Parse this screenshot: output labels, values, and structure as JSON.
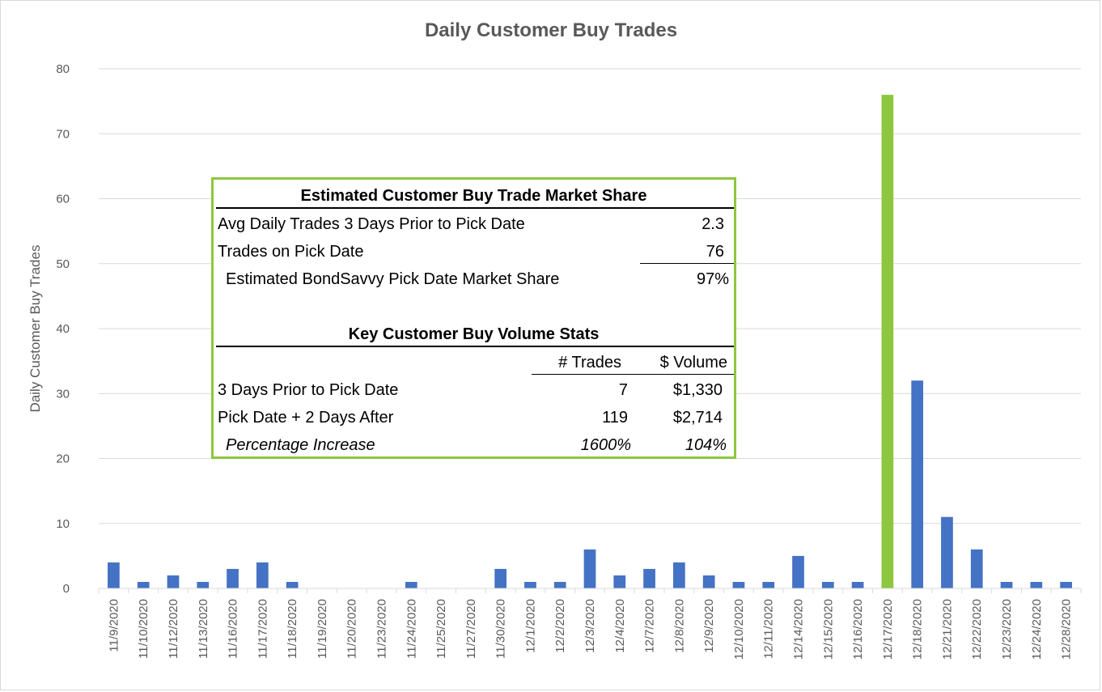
{
  "chart_data": {
    "type": "bar",
    "title": "Daily Customer Buy Trades",
    "ylabel": "Daily Customer Buy Trades",
    "xlabel": "",
    "ylim": [
      0,
      80
    ],
    "yticks": [
      "0",
      "10",
      "20",
      "30",
      "40",
      "50",
      "60",
      "70",
      "80"
    ],
    "grid": true,
    "categories": [
      "11/9/2020",
      "11/10/2020",
      "11/12/2020",
      "11/13/2020",
      "11/16/2020",
      "11/17/2020",
      "11/18/2020",
      "11/19/2020",
      "11/20/2020",
      "11/23/2020",
      "11/24/2020",
      "11/25/2020",
      "11/27/2020",
      "11/30/2020",
      "12/1/2020",
      "12/2/2020",
      "12/3/2020",
      "12/4/2020",
      "12/7/2020",
      "12/8/2020",
      "12/9/2020",
      "12/10/2020",
      "12/11/2020",
      "12/14/2020",
      "12/15/2020",
      "12/16/2020",
      "12/17/2020",
      "12/18/2020",
      "12/21/2020",
      "12/22/2020",
      "12/23/2020",
      "12/24/2020",
      "12/28/2020"
    ],
    "values": [
      4,
      1,
      2,
      1,
      3,
      4,
      1,
      0,
      0,
      0,
      1,
      0,
      0,
      3,
      1,
      1,
      6,
      2,
      3,
      4,
      2,
      1,
      1,
      5,
      1,
      1,
      76,
      32,
      11,
      6,
      1,
      1,
      1
    ],
    "highlight_index": 26,
    "colors": {
      "bar": "#4472c4",
      "highlight": "#8dc63f",
      "grid": "#d9d9d9",
      "axis": "#595959"
    }
  },
  "stats_box": {
    "border_color": "#8dc63f",
    "market_share": {
      "title": "Estimated Customer Buy Trade Market Share",
      "avg_label": "Avg Daily Trades 3 Days Prior to Pick Date",
      "avg_value": "2.3",
      "pick_label": "Trades on Pick Date",
      "pick_value": "76",
      "share_label": "Estimated BondSavvy Pick Date Market Share",
      "share_value": "97%"
    },
    "volume_stats": {
      "title": "Key Customer Buy Volume Stats",
      "col_trades": "# Trades",
      "col_volume": "$ Volume",
      "rows": [
        {
          "label": "3 Days Prior to Pick Date",
          "trades": "7",
          "volume": "$1,330"
        },
        {
          "label": "Pick Date + 2 Days After",
          "trades": "119",
          "volume": "$2,714"
        },
        {
          "label": "Percentage Increase",
          "trades": "1600%",
          "volume": "104%"
        }
      ]
    }
  }
}
